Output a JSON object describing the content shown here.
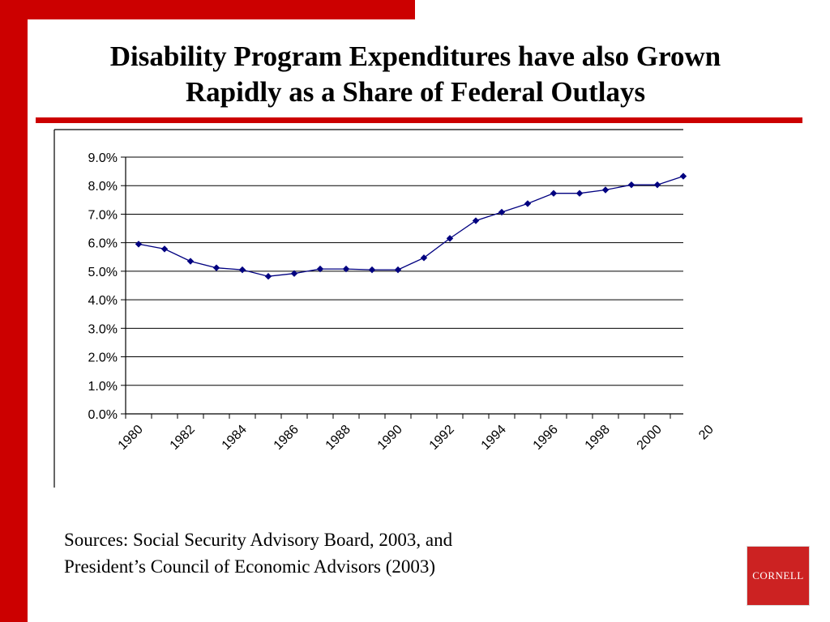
{
  "slide": {
    "title_line1": "Disability Program Expenditures have  also Grown",
    "title_line2": "Rapidly as a Share of Federal Outlays",
    "sources_line1": "Sources: Social Security Advisory Board, 2003, and",
    "sources_line2": "President’s Council of Economic Advisors (2003)",
    "logo_text": "CORNELL",
    "accent_color": "#cc0000"
  },
  "chart_data": {
    "type": "line",
    "title": "",
    "xlabel": "",
    "ylabel": "",
    "x": [
      1980,
      1981,
      1982,
      1983,
      1984,
      1985,
      1986,
      1987,
      1988,
      1989,
      1990,
      1991,
      1992,
      1993,
      1994,
      1995,
      1996,
      1997,
      1998,
      1999,
      2000,
      2001
    ],
    "series": [
      {
        "values": [
          5.95,
          5.78,
          5.35,
          5.12,
          5.05,
          4.82,
          4.92,
          5.08,
          5.08,
          5.05,
          5.05,
          5.47,
          6.15,
          6.77,
          7.07,
          7.37,
          7.73,
          7.73,
          7.85,
          8.03,
          8.03,
          8.33
        ],
        "color": "#000080"
      }
    ],
    "x_tick_labels": [
      "1980",
      "1982",
      "1984",
      "1986",
      "1988",
      "1990",
      "1992",
      "1994",
      "1996",
      "1998",
      "2000",
      "20"
    ],
    "y_tick_labels": [
      "0.0%",
      "1.0%",
      "2.0%",
      "3.0%",
      "4.0%",
      "5.0%",
      "6.0%",
      "7.0%",
      "8.0%",
      "9.0%"
    ],
    "ylim": [
      0,
      9
    ],
    "grid": true,
    "legend": "none"
  }
}
